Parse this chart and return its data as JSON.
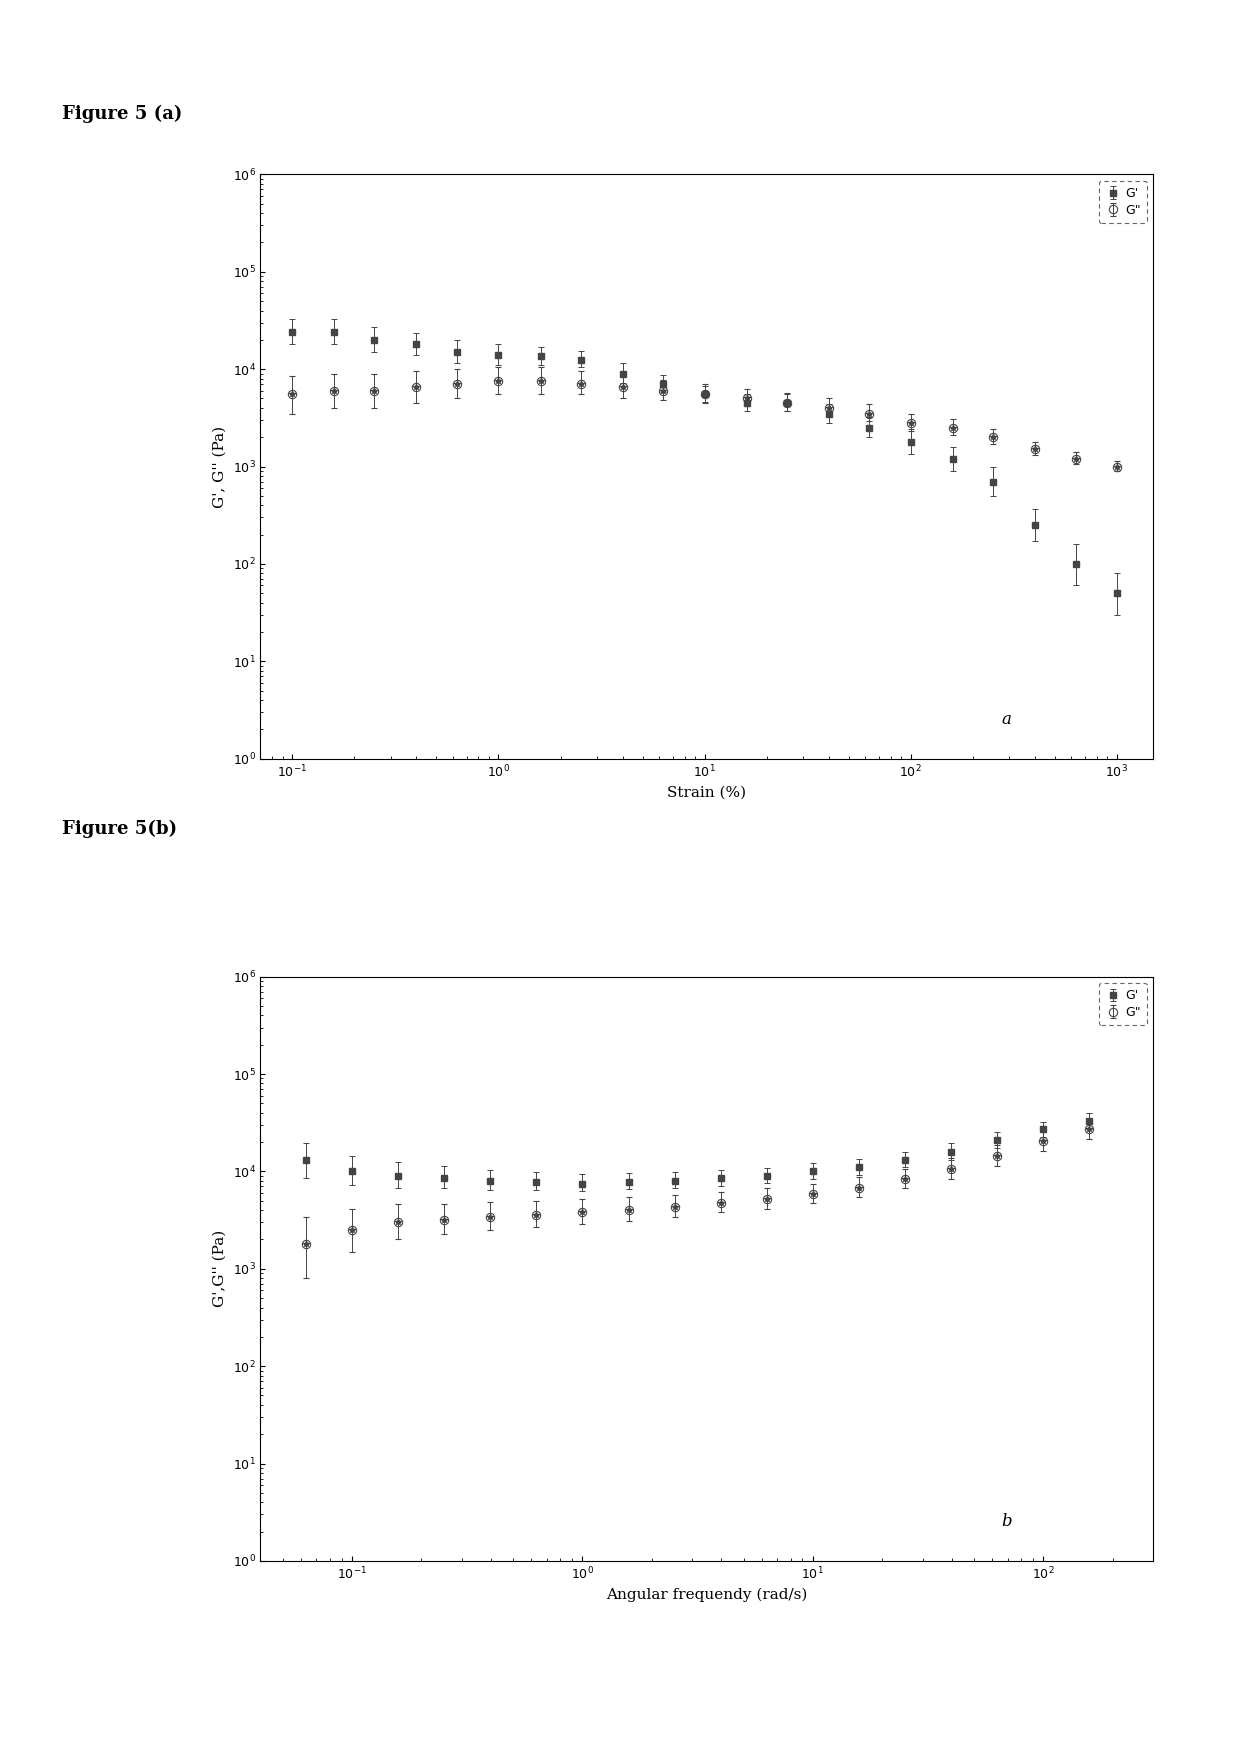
{
  "fig_label_a": "Figure 5 (a)",
  "fig_label_b": "Figure 5(b)",
  "panel_a": {
    "xlabel": "Strain (%)",
    "ylabel": "G', G'' (Pa)",
    "annotation": "a",
    "xlim": [
      0.07,
      1500
    ],
    "ylim": [
      1.0,
      1000000.0
    ],
    "G_prime_x": [
      0.1,
      0.16,
      0.25,
      0.4,
      0.63,
      1.0,
      1.6,
      2.5,
      4.0,
      6.3,
      10.0,
      16.0,
      25.0,
      40.0,
      63.0,
      100.0,
      160.0,
      250.0,
      400.0,
      630.0,
      1000.0
    ],
    "G_prime_y": [
      24000,
      24000,
      20000,
      18000,
      15000,
      14000,
      13500,
      12500,
      9000,
      7000,
      5500,
      4500,
      4500,
      3500,
      2500,
      1800,
      1200,
      700,
      250,
      100,
      50
    ],
    "G_prime_yerr_low": [
      6000,
      6000,
      5000,
      4000,
      3500,
      3000,
      2500,
      2000,
      1800,
      1200,
      900,
      800,
      800,
      700,
      500,
      450,
      300,
      200,
      80,
      40,
      20
    ],
    "G_prime_yerr_high": [
      9000,
      9000,
      7000,
      5500,
      5000,
      4000,
      3500,
      3000,
      2500,
      1800,
      1200,
      1000,
      1000,
      900,
      700,
      600,
      400,
      280,
      120,
      60,
      30
    ],
    "G_dprime_x": [
      0.1,
      0.16,
      0.25,
      0.4,
      0.63,
      1.0,
      1.6,
      2.5,
      4.0,
      6.3,
      10.0,
      16.0,
      25.0,
      40.0,
      63.0,
      100.0,
      160.0,
      250.0,
      400.0,
      630.0,
      1000.0
    ],
    "G_dprime_y": [
      5500,
      6000,
      6000,
      6500,
      7000,
      7500,
      7500,
      7000,
      6500,
      6000,
      5500,
      5000,
      4500,
      4000,
      3500,
      2800,
      2500,
      2000,
      1500,
      1200,
      1000
    ],
    "G_dprime_yerr_low": [
      2000,
      2000,
      2000,
      2000,
      2000,
      2000,
      2000,
      1500,
      1500,
      1200,
      1000,
      800,
      800,
      700,
      600,
      500,
      400,
      300,
      200,
      150,
      100
    ],
    "G_dprime_yerr_high": [
      3000,
      3000,
      3000,
      3000,
      3000,
      3000,
      3000,
      2500,
      2000,
      1800,
      1500,
      1200,
      1200,
      1000,
      900,
      700,
      600,
      400,
      300,
      220,
      150
    ]
  },
  "panel_b": {
    "xlabel": "Angular frequendy (rad/s)",
    "ylabel": "G',G'' (Pa)",
    "annotation": "b",
    "xlim": [
      0.04,
      300
    ],
    "ylim": [
      1.0,
      1000000.0
    ],
    "G_prime_x": [
      0.0628,
      0.0995,
      0.158,
      0.251,
      0.398,
      0.631,
      1.0,
      1.585,
      2.512,
      3.981,
      6.31,
      10.0,
      15.85,
      25.12,
      39.81,
      63.1,
      100.0,
      158.5
    ],
    "G_prime_y": [
      13000,
      10000,
      9000,
      8500,
      8000,
      7800,
      7500,
      7800,
      8000,
      8500,
      9000,
      10000,
      11000,
      13000,
      16000,
      21000,
      27000,
      33000
    ],
    "G_prime_yerr_low": [
      4500,
      2800,
      2200,
      1800,
      1600,
      1400,
      1200,
      1200,
      1200,
      1400,
      1400,
      1600,
      1800,
      2000,
      2800,
      3500,
      4500,
      6000
    ],
    "G_prime_yerr_high": [
      6500,
      4500,
      3500,
      2800,
      2400,
      2000,
      1800,
      1800,
      1800,
      1800,
      1800,
      2200,
      2500,
      2800,
      3500,
      4500,
      5500,
      7000
    ],
    "G_dprime_x": [
      0.0628,
      0.0995,
      0.158,
      0.251,
      0.398,
      0.631,
      1.0,
      1.585,
      2.512,
      3.981,
      6.31,
      10.0,
      15.85,
      25.12,
      39.81,
      63.1,
      100.0,
      158.5
    ],
    "G_dprime_y": [
      1800,
      2500,
      3000,
      3200,
      3400,
      3600,
      3800,
      4000,
      4300,
      4700,
      5200,
      5800,
      6800,
      8300,
      10500,
      14500,
      20500,
      27000
    ],
    "G_dprime_yerr_low": [
      1000,
      1000,
      1000,
      900,
      900,
      900,
      900,
      900,
      900,
      900,
      1100,
      1100,
      1300,
      1600,
      2200,
      3200,
      4200,
      5500
    ],
    "G_dprime_yerr_high": [
      1600,
      1600,
      1600,
      1400,
      1400,
      1400,
      1400,
      1400,
      1400,
      1400,
      1600,
      1600,
      2000,
      2200,
      3200,
      4200,
      5500,
      6500
    ]
  },
  "marker_color": "#444444",
  "marker_size": 5,
  "capsize": 2,
  "elinewidth": 0.7,
  "background_color": "#ffffff"
}
